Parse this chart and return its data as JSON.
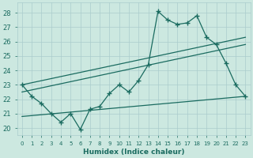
{
  "xlabel": "Humidex (Indice chaleur)",
  "background_color": "#cce8e0",
  "grid_color": "#aacccc",
  "line_color": "#1a6b60",
  "xlim": [
    -0.5,
    23.5
  ],
  "ylim": [
    19.5,
    28.7
  ],
  "yticks": [
    20,
    21,
    22,
    23,
    24,
    25,
    26,
    27,
    28
  ],
  "xticks": [
    0,
    1,
    2,
    3,
    4,
    5,
    6,
    7,
    8,
    9,
    10,
    11,
    12,
    13,
    14,
    15,
    16,
    17,
    18,
    19,
    20,
    21,
    22,
    23
  ],
  "main_x": [
    0,
    1,
    2,
    3,
    4,
    5,
    6,
    7,
    8,
    9,
    10,
    11,
    12,
    13,
    14,
    15,
    16,
    17,
    18,
    19,
    20,
    21,
    22,
    23
  ],
  "main_y": [
    23.0,
    22.2,
    21.7,
    21.0,
    20.4,
    21.0,
    19.9,
    21.3,
    21.5,
    22.4,
    23.0,
    22.5,
    23.3,
    24.4,
    28.1,
    27.5,
    27.2,
    27.3,
    27.8,
    26.3,
    25.8,
    24.5,
    23.0,
    22.2
  ],
  "line1_x": [
    0,
    23
  ],
  "line1_y": [
    23.0,
    26.3
  ],
  "line2_x": [
    0,
    23
  ],
  "line2_y": [
    22.5,
    25.8
  ],
  "line3_x": [
    0,
    23
  ],
  "line3_y": [
    20.8,
    22.2
  ]
}
